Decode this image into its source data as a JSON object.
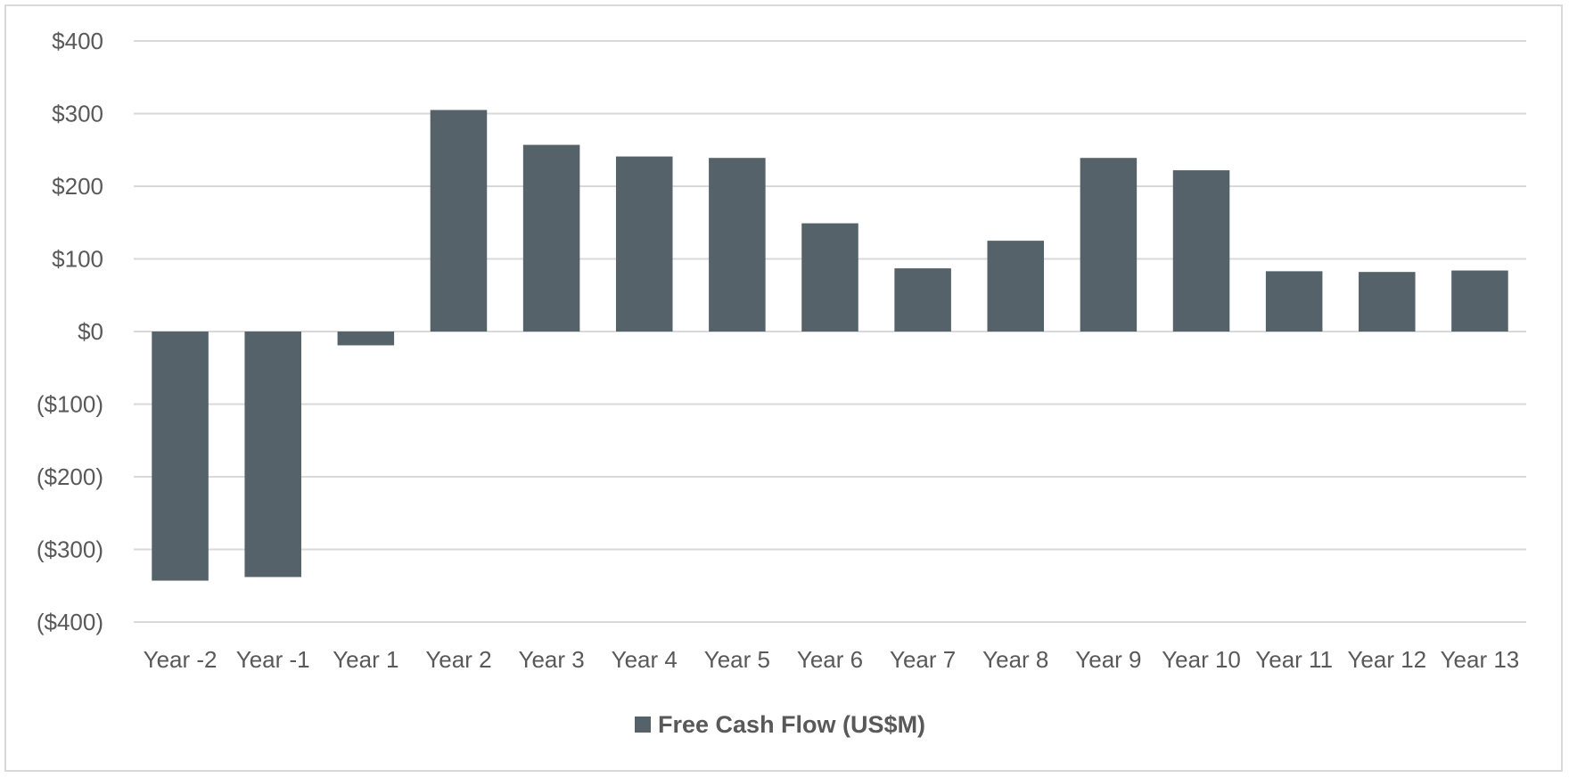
{
  "chart_data": {
    "type": "bar",
    "categories": [
      "Year -2",
      "Year -1",
      "Year 1",
      "Year 2",
      "Year 3",
      "Year 4",
      "Year 5",
      "Year 6",
      "Year 7",
      "Year 8",
      "Year 9",
      "Year 10",
      "Year 11",
      "Year 12",
      "Year 13"
    ],
    "series": [
      {
        "name": "Free Cash Flow (US$M)",
        "values": [
          -343,
          -338,
          -19,
          305,
          257,
          241,
          239,
          149,
          87,
          125,
          239,
          222,
          83,
          82,
          84
        ]
      }
    ],
    "ylim": [
      -400,
      400
    ],
    "yticks": [
      400,
      300,
      200,
      100,
      0,
      -100,
      -200,
      -300,
      -400
    ],
    "ytick_labels": [
      "$400",
      "$300",
      "$200",
      "$100",
      "$0",
      "($100)",
      "($200)",
      "($300)",
      "($400)"
    ],
    "grid": true,
    "legend_position": "bottom",
    "colors": {
      "bar": "#56626a",
      "grid": "#d9d9d9",
      "text": "#595959",
      "border": "#d9d9d9"
    }
  }
}
